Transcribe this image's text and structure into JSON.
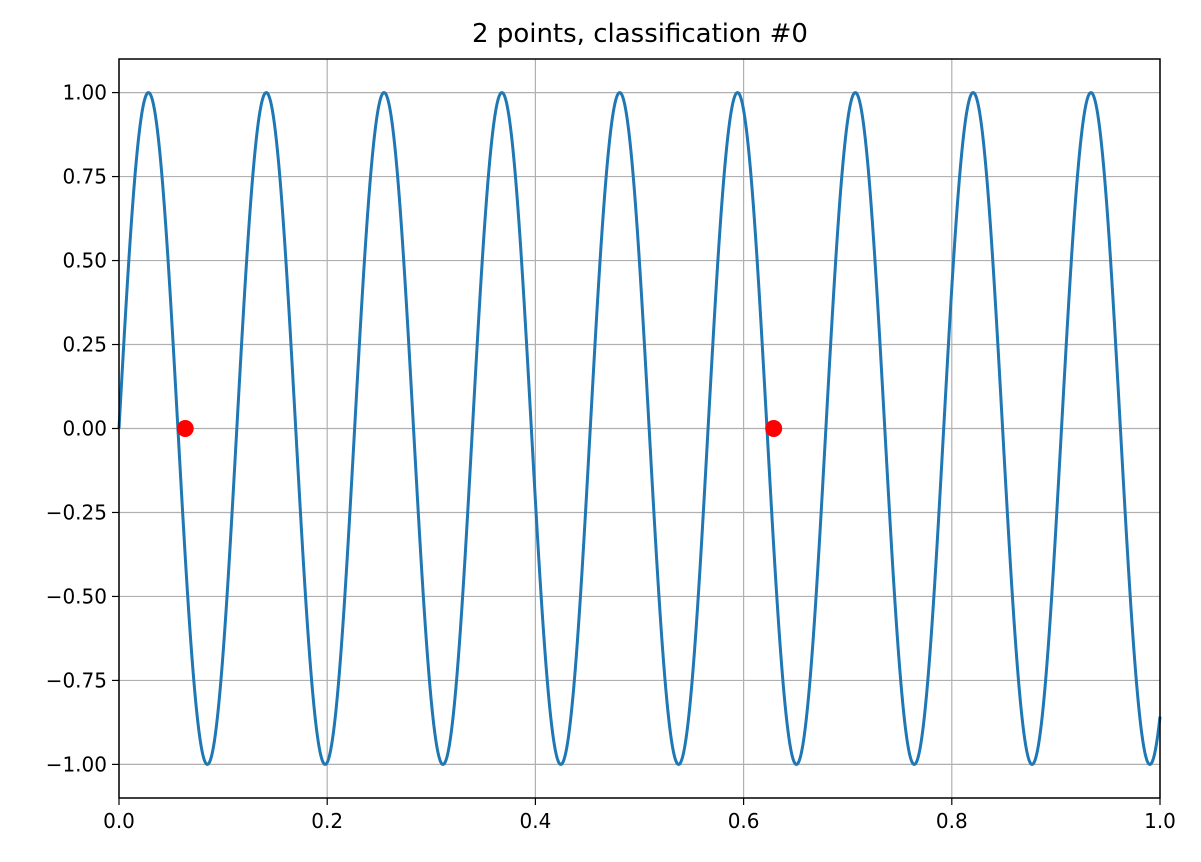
{
  "chart_data": {
    "type": "line",
    "title": "2 points, classification #0",
    "xlabel": "",
    "ylabel": "",
    "xlim": [
      0.0,
      1.0
    ],
    "ylim": [
      -1.1,
      1.1
    ],
    "grid": true,
    "xticks": [
      0.0,
      0.2,
      0.4,
      0.6,
      0.8,
      1.0
    ],
    "xtick_labels": [
      "0.0",
      "0.2",
      "0.4",
      "0.6",
      "0.8",
      "1.0"
    ],
    "yticks": [
      1.0,
      0.75,
      0.5,
      0.25,
      0.0,
      -0.25,
      -0.5,
      -0.75,
      -1.0
    ],
    "ytick_labels": [
      "1.00",
      "0.75",
      "0.50",
      "0.25",
      "0.00",
      "−0.25",
      "−0.50",
      "−0.75",
      "−1.00"
    ],
    "series": [
      {
        "kind": "function",
        "function": "sin",
        "frequency_cycles_per_unit": 8.836,
        "x_range": [
          0.0,
          1.0
        ],
        "color": "#1f77b4"
      },
      {
        "kind": "points",
        "x": [
          0.0636,
          0.6289
        ],
        "y": [
          0.0,
          0.0
        ],
        "color": "#ff0000"
      }
    ]
  }
}
